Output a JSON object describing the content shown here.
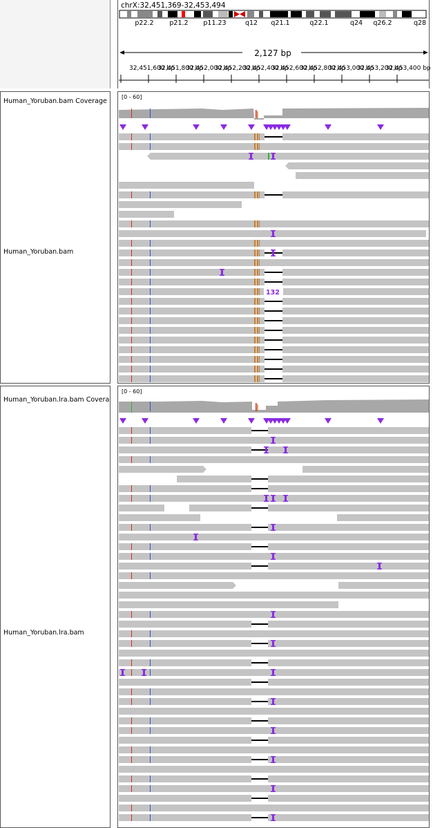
{
  "locus": "chrX:32,451,369-32,453,494",
  "span": "2,127 bp",
  "ideogram_bands": [
    "p22.2",
    "p21.2",
    "p11.23",
    "q12",
    "q21.1",
    "q22.1",
    "q24",
    "q26.2",
    "q28"
  ],
  "ruler_ticks": [
    "32,451,600 bp",
    "32,451,800 bp",
    "32,452,000 bp",
    "32,452,200 bp",
    "32,452,400 bp",
    "32,452,600 bp",
    "32,452,800 bp",
    "32,453,000 bp",
    "32,453,200 bp",
    "32,453,400 bp"
  ],
  "panels": [
    {
      "coverage_name": "Human_Yoruban.bam Coverage",
      "coverage_range": "[0 - 60]",
      "alignment_name": "Human_Yoruban.bam",
      "deletion_label": "132"
    },
    {
      "coverage_name": "Human_Yoruban.lra.bam Coverage",
      "coverage_range": "[0 - 60]",
      "alignment_name": "Human_Yoruban.lra.bam"
    }
  ],
  "colors": {
    "read": "#c4c4c4",
    "coverage": "#a8a8a8",
    "insertion": "#8a2be2",
    "mismatch_orange": "#c87f2f",
    "mismatch_red": "#d42b2b",
    "mismatch_blue": "#2d4fd1",
    "mismatch_green": "#2fb12f"
  }
}
